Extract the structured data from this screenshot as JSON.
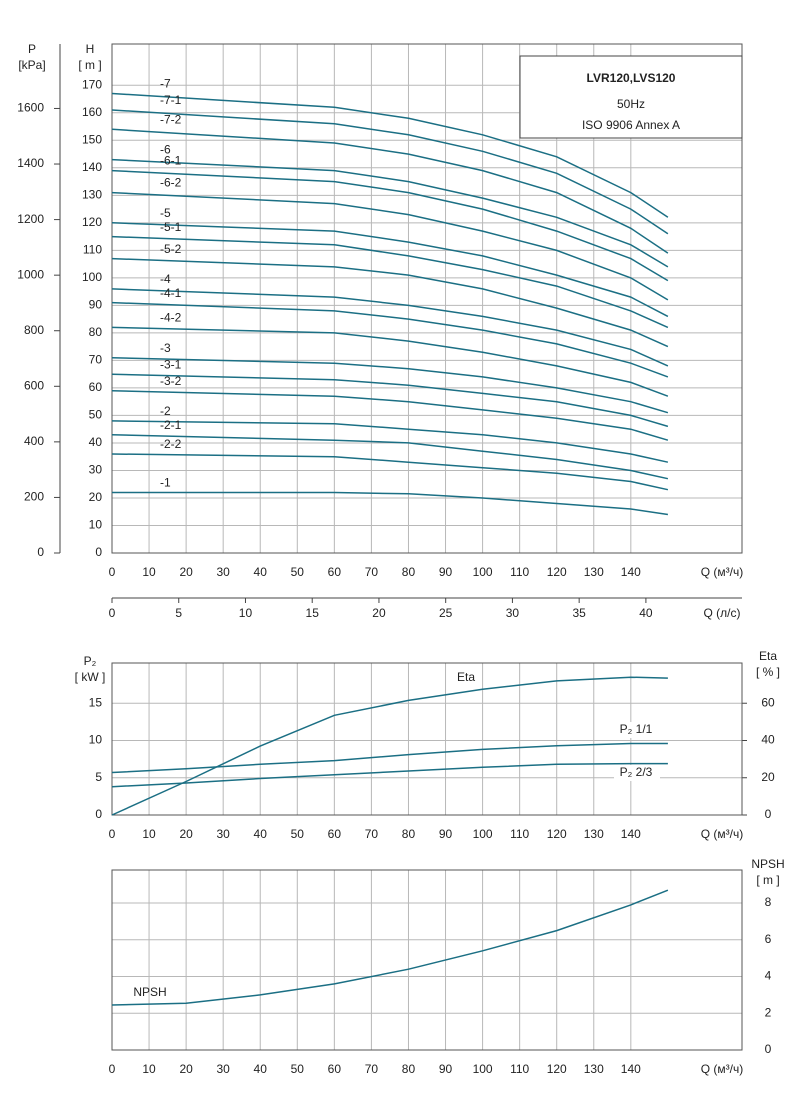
{
  "chart_data": [
    {
      "type": "line",
      "title": "LVR120,LVS120",
      "subtitle": "50Hz",
      "annotation": "ISO 9906 Annex A",
      "ylabel": "H",
      "yunit": "[ m ]",
      "y2label": "P",
      "y2unit": "[kPa]",
      "y2_position": "left",
      "xlabel": "Q (м³/ч)",
      "x2label": "Q (л/с)",
      "xlim": [
        0,
        170
      ],
      "xticks": [
        0,
        10,
        20,
        30,
        40,
        50,
        60,
        70,
        80,
        90,
        100,
        110,
        120,
        130,
        140
      ],
      "x2lim": [
        0,
        47.2
      ],
      "x2ticks": [
        0,
        5,
        10,
        15,
        20,
        25,
        30,
        35,
        40
      ],
      "ylim": [
        0,
        185
      ],
      "yticks": [
        0,
        10,
        20,
        30,
        40,
        50,
        60,
        70,
        80,
        90,
        100,
        110,
        120,
        130,
        140,
        150,
        160,
        170
      ],
      "y2lim": [
        0,
        1832
      ],
      "y2ticks": [
        0,
        200,
        400,
        600,
        800,
        1000,
        1200,
        1400,
        1600
      ],
      "grid": true,
      "x": [
        0,
        60,
        80,
        100,
        120,
        140,
        150
      ],
      "series": [
        {
          "name": "-7",
          "color": "#1b6f84",
          "values": [
            167,
            162,
            158,
            152,
            144,
            131,
            122
          ]
        },
        {
          "name": "-7-1",
          "color": "#1b6f84",
          "values": [
            161,
            156,
            152,
            146,
            138,
            125,
            116
          ]
        },
        {
          "name": "-7-2",
          "color": "#1b6f84",
          "values": [
            154,
            149,
            145,
            139,
            131,
            118,
            109
          ]
        },
        {
          "name": "-6",
          "color": "#1b6f84",
          "values": [
            143,
            139,
            135,
            129,
            122,
            112,
            104
          ]
        },
        {
          "name": "-6-1",
          "color": "#1b6f84",
          "values": [
            139,
            135,
            131,
            125,
            117,
            107,
            99
          ]
        },
        {
          "name": "-6-2",
          "color": "#1b6f84",
          "values": [
            131,
            127,
            123,
            117,
            110,
            100,
            92
          ]
        },
        {
          "name": "-5",
          "color": "#1b6f84",
          "values": [
            120,
            117,
            113,
            108,
            101,
            93,
            86
          ]
        },
        {
          "name": "-5-1",
          "color": "#1b6f84",
          "values": [
            115,
            112,
            108,
            103,
            97,
            88,
            82
          ]
        },
        {
          "name": "-5-2",
          "color": "#1b6f84",
          "values": [
            107,
            104,
            101,
            96,
            89,
            81,
            75
          ]
        },
        {
          "name": "-4",
          "color": "#1b6f84",
          "values": [
            96,
            93,
            90,
            86,
            81,
            74,
            68
          ]
        },
        {
          "name": "-4-1",
          "color": "#1b6f84",
          "values": [
            91,
            88,
            85,
            81,
            76,
            69,
            64
          ]
        },
        {
          "name": "-4-2",
          "color": "#1b6f84",
          "values": [
            82,
            80,
            77,
            73,
            68,
            62,
            57
          ]
        },
        {
          "name": "-3",
          "color": "#1b6f84",
          "values": [
            71,
            69,
            67,
            64,
            60,
            55,
            51
          ]
        },
        {
          "name": "-3-1",
          "color": "#1b6f84",
          "values": [
            65,
            63,
            61,
            58,
            55,
            50,
            46
          ]
        },
        {
          "name": "-3-2",
          "color": "#1b6f84",
          "values": [
            59,
            57,
            55,
            52,
            49,
            45,
            41
          ]
        },
        {
          "name": "-2",
          "color": "#1b6f84",
          "values": [
            48,
            47,
            45,
            43,
            40,
            36,
            33
          ]
        },
        {
          "name": "-2-1",
          "color": "#1b6f84",
          "values": [
            43,
            41,
            40,
            37,
            34,
            30,
            27
          ]
        },
        {
          "name": "-2-2",
          "color": "#1b6f84",
          "values": [
            36,
            35,
            33,
            31,
            29,
            26,
            23
          ]
        },
        {
          "name": "-1",
          "color": "#1b6f84",
          "values": [
            22,
            22,
            21.5,
            20,
            18,
            16,
            14
          ]
        }
      ]
    },
    {
      "type": "line",
      "ylabel": "P₂",
      "yunit": "[ kW ]",
      "y2label": "Eta",
      "y2unit": "[ % ]",
      "y2_position": "right",
      "xlabel": "Q (м³/ч)",
      "xlim": [
        0,
        170
      ],
      "xticks": [
        0,
        10,
        20,
        30,
        40,
        50,
        60,
        70,
        80,
        90,
        100,
        110,
        120,
        130,
        140
      ],
      "ylim": [
        0,
        20.4
      ],
      "yticks": [
        0,
        5,
        10,
        15
      ],
      "y2lim": [
        0,
        81.6
      ],
      "y2ticks": [
        0,
        20,
        40,
        60
      ],
      "grid": true,
      "x": [
        0,
        20,
        40,
        60,
        80,
        100,
        120,
        140,
        150
      ],
      "series": [
        {
          "name": "Eta",
          "color": "#1b6f84",
          "axis": "y2",
          "values": [
            0,
            18,
            37,
            53.5,
            61.5,
            67.5,
            72,
            74,
            73.5
          ]
        },
        {
          "name": "P₂ 1/1",
          "color": "#1b6f84",
          "values": [
            5.7,
            6.2,
            6.8,
            7.3,
            8.1,
            8.8,
            9.3,
            9.6,
            9.6
          ]
        },
        {
          "name": "P₂ 2/3",
          "color": "#1b6f84",
          "values": [
            3.8,
            4.3,
            4.9,
            5.4,
            5.9,
            6.4,
            6.8,
            6.9,
            6.9
          ]
        }
      ]
    },
    {
      "type": "line",
      "ylabel": "NPSH",
      "yunit": "[ m ]",
      "y_position": "right",
      "xlabel": "Q (м³/ч)",
      "xlim": [
        0,
        170
      ],
      "xticks": [
        0,
        10,
        20,
        30,
        40,
        50,
        60,
        70,
        80,
        90,
        100,
        110,
        120,
        130,
        140
      ],
      "ylim": [
        0,
        9.8
      ],
      "yticks": [
        0,
        2,
        4,
        6,
        8
      ],
      "grid": true,
      "x": [
        0,
        20,
        40,
        60,
        80,
        100,
        120,
        140,
        150
      ],
      "series": [
        {
          "name": "NPSH",
          "color": "#1b6f84",
          "values": [
            2.45,
            2.55,
            3.0,
            3.6,
            4.4,
            5.4,
            6.5,
            7.9,
            8.7
          ]
        }
      ]
    }
  ]
}
